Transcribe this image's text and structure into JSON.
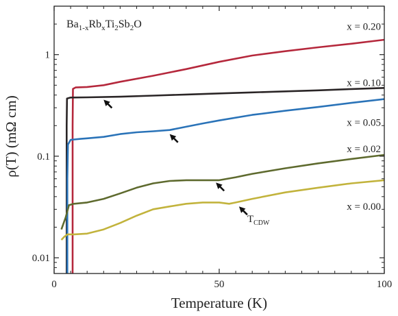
{
  "chart_data": {
    "type": "line",
    "title": "",
    "xlabel": "Temperature (K)",
    "ylabel": "ρ(T)  (mΩ cm)",
    "xlim": [
      0,
      100
    ],
    "ylim": [
      0.007,
      3.0
    ],
    "yscale": "log",
    "x_ticks": [
      0,
      50,
      100
    ],
    "y_ticks": [
      0.01,
      0.1,
      1
    ],
    "y_tick_labels": [
      "0.01",
      "0.1",
      "1"
    ],
    "grid": false,
    "formula": {
      "parts": [
        {
          "text": "Ba",
          "sub": false
        },
        {
          "text": "1-x",
          "sub": true
        },
        {
          "text": "Rb",
          "sub": false
        },
        {
          "text": "x",
          "sub": true
        },
        {
          "text": "Ti",
          "sub": false
        },
        {
          "text": "2",
          "sub": true
        },
        {
          "text": "Sb",
          "sub": false
        },
        {
          "text": "2",
          "sub": true
        },
        {
          "text": "O",
          "sub": false
        }
      ]
    },
    "series": [
      {
        "name": "x = 0.20",
        "color": "#b5283c",
        "label_pos": [
          100,
          1.9
        ],
        "points": [
          [
            5.6,
            0.007
          ],
          [
            5.6,
            0.2
          ],
          [
            5.7,
            0.46
          ],
          [
            6.5,
            0.475
          ],
          [
            10,
            0.48
          ],
          [
            15,
            0.5
          ],
          [
            20,
            0.54
          ],
          [
            30,
            0.62
          ],
          [
            40,
            0.72
          ],
          [
            50,
            0.85
          ],
          [
            60,
            0.98
          ],
          [
            70,
            1.08
          ],
          [
            80,
            1.18
          ],
          [
            90,
            1.28
          ],
          [
            100,
            1.4
          ]
        ]
      },
      {
        "name": "x = 0.10",
        "color": "#2a2526",
        "label_pos": [
          100,
          0.53
        ],
        "points": [
          [
            3.8,
            0.007
          ],
          [
            3.8,
            0.2
          ],
          [
            3.9,
            0.37
          ],
          [
            5,
            0.378
          ],
          [
            10,
            0.38
          ],
          [
            20,
            0.385
          ],
          [
            30,
            0.395
          ],
          [
            40,
            0.405
          ],
          [
            50,
            0.415
          ],
          [
            60,
            0.425
          ],
          [
            70,
            0.435
          ],
          [
            80,
            0.445
          ],
          [
            90,
            0.458
          ],
          [
            100,
            0.47
          ]
        ]
      },
      {
        "name": "x = 0.05",
        "color": "#2a73b8",
        "label_pos": [
          100,
          0.215
        ],
        "points": [
          [
            4.0,
            0.007
          ],
          [
            4.0,
            0.06
          ],
          [
            4.2,
            0.13
          ],
          [
            5,
            0.145
          ],
          [
            8,
            0.148
          ],
          [
            10,
            0.15
          ],
          [
            15,
            0.155
          ],
          [
            20,
            0.165
          ],
          [
            25,
            0.172
          ],
          [
            30,
            0.176
          ],
          [
            35,
            0.181
          ],
          [
            40,
            0.195
          ],
          [
            45,
            0.21
          ],
          [
            50,
            0.225
          ],
          [
            60,
            0.255
          ],
          [
            70,
            0.28
          ],
          [
            80,
            0.305
          ],
          [
            90,
            0.335
          ],
          [
            100,
            0.365
          ]
        ]
      },
      {
        "name": "x = 0.02",
        "color": "#5e6a2e",
        "label_pos": [
          100,
          0.118
        ],
        "points": [
          [
            2.2,
            0.019
          ],
          [
            3.5,
            0.025
          ],
          [
            4.5,
            0.033
          ],
          [
            6,
            0.034
          ],
          [
            10,
            0.035
          ],
          [
            15,
            0.038
          ],
          [
            20,
            0.043
          ],
          [
            25,
            0.049
          ],
          [
            30,
            0.054
          ],
          [
            35,
            0.057
          ],
          [
            40,
            0.058
          ],
          [
            45,
            0.058
          ],
          [
            50,
            0.058
          ],
          [
            55,
            0.062
          ],
          [
            60,
            0.067
          ],
          [
            70,
            0.076
          ],
          [
            80,
            0.085
          ],
          [
            90,
            0.094
          ],
          [
            100,
            0.103
          ]
        ]
      },
      {
        "name": "x = 0.00",
        "color": "#c2b33c",
        "label_pos": [
          100,
          0.032
        ],
        "points": [
          [
            2.2,
            0.015
          ],
          [
            3,
            0.016
          ],
          [
            4,
            0.017
          ],
          [
            6,
            0.017
          ],
          [
            10,
            0.0173
          ],
          [
            15,
            0.019
          ],
          [
            20,
            0.022
          ],
          [
            25,
            0.026
          ],
          [
            30,
            0.03
          ],
          [
            35,
            0.032
          ],
          [
            40,
            0.034
          ],
          [
            45,
            0.035
          ],
          [
            50,
            0.035
          ],
          [
            53,
            0.034
          ],
          [
            55,
            0.035
          ],
          [
            60,
            0.038
          ],
          [
            70,
            0.044
          ],
          [
            80,
            0.049
          ],
          [
            90,
            0.054
          ],
          [
            100,
            0.058
          ]
        ]
      }
    ],
    "arrows": [
      {
        "tip": [
          15,
          0.36
        ],
        "dir": [
          1,
          -1
        ]
      },
      {
        "tip": [
          35,
          0.165
        ],
        "dir": [
          1,
          -1
        ]
      },
      {
        "tip": [
          49,
          0.055
        ],
        "dir": [
          1,
          -1
        ]
      },
      {
        "tip": [
          56,
          0.032
        ],
        "dir": [
          1,
          -1
        ]
      }
    ],
    "annotation": {
      "main": "T",
      "sub": "CDW",
      "pos": [
        58.5,
        0.0225
      ]
    }
  }
}
